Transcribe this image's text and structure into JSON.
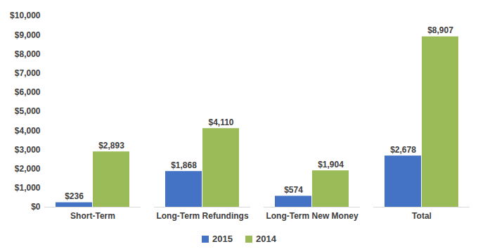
{
  "chart_data": {
    "type": "bar",
    "categories": [
      "Short-Term",
      "Long-Term Refundings",
      "Long-Term New Money",
      "Total"
    ],
    "series": [
      {
        "name": "2015",
        "color": "#4472c4",
        "values": [
          236,
          1868,
          574,
          2678
        ],
        "value_labels": [
          "$236",
          "$1,868",
          "$574",
          "$2,678"
        ]
      },
      {
        "name": "2014",
        "color": "#9bbb59",
        "values": [
          2893,
          4110,
          1904,
          8907
        ],
        "value_labels": [
          "$2,893",
          "$4,110",
          "$1,904",
          "$8,907"
        ]
      }
    ],
    "ylim": [
      0,
      10000
    ],
    "yticks": [
      {
        "value": 0,
        "label": "$0"
      },
      {
        "value": 1000,
        "label": "$1,000"
      },
      {
        "value": 2000,
        "label": "$2,000"
      },
      {
        "value": 3000,
        "label": "$3,000"
      },
      {
        "value": 4000,
        "label": "$4,000"
      },
      {
        "value": 5000,
        "label": "$5,000"
      },
      {
        "value": 6000,
        "label": "$6,000"
      },
      {
        "value": 7000,
        "label": "$7,000"
      },
      {
        "value": 8000,
        "label": "$8,000"
      },
      {
        "value": 9000,
        "label": "$9,000"
      },
      {
        "value": 10000,
        "label": "$10,000"
      }
    ],
    "grid": false,
    "legend": "bottom",
    "data_labels": true
  }
}
